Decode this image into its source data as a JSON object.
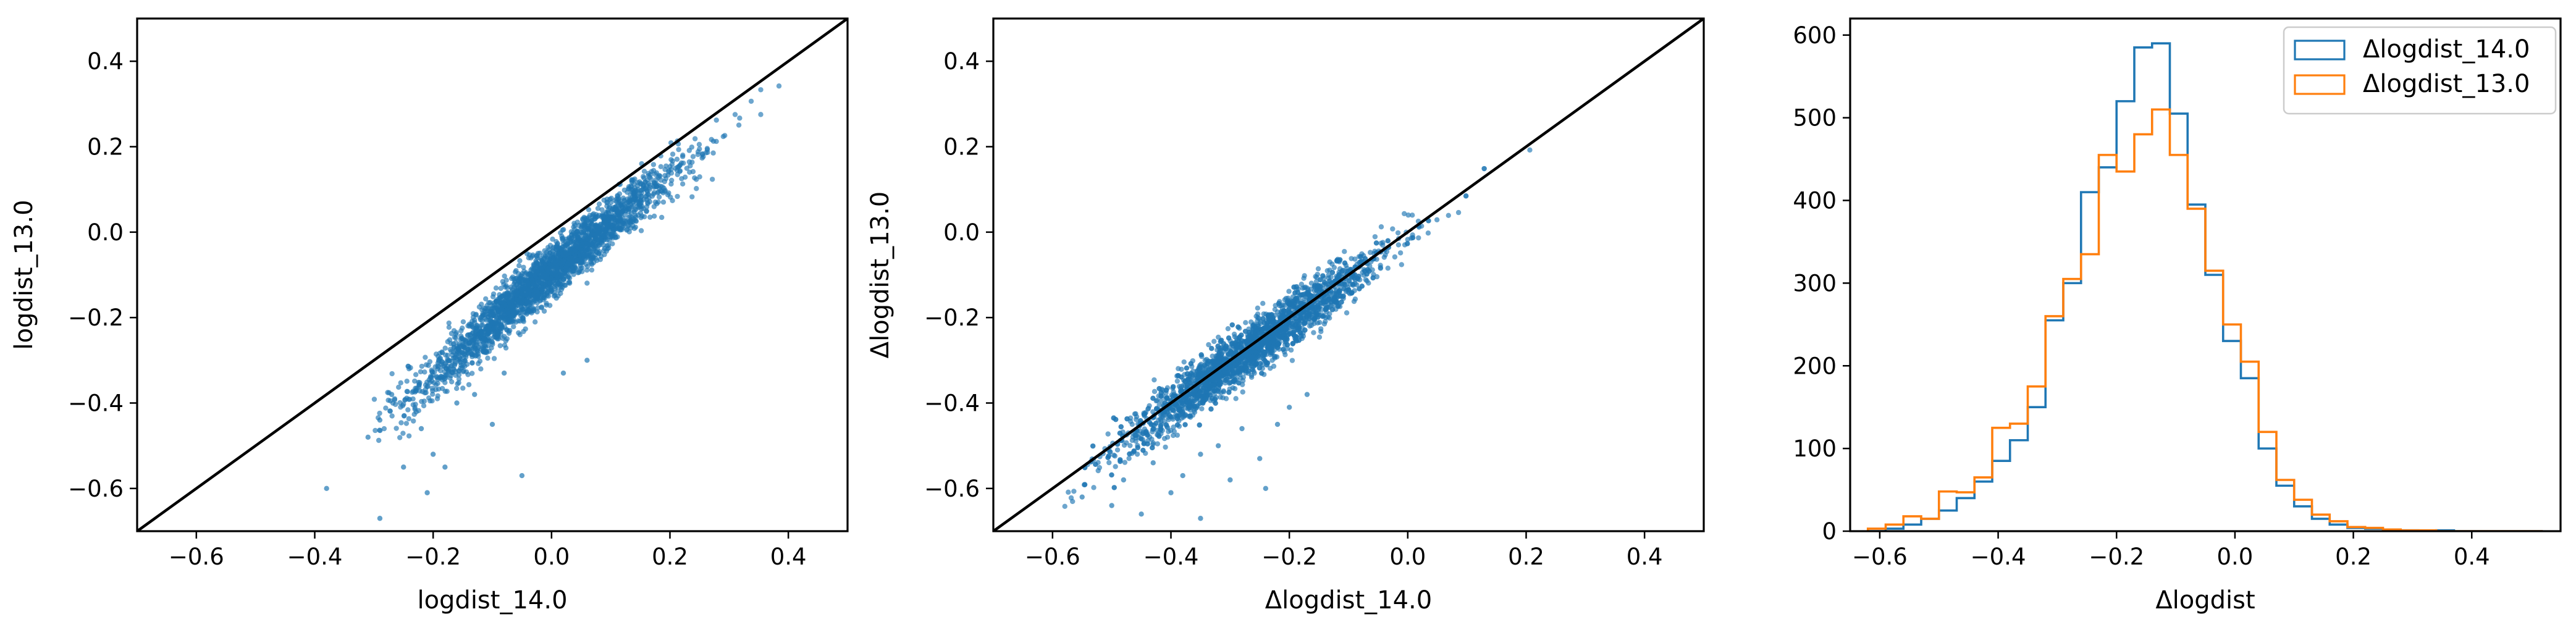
{
  "chart_data": [
    {
      "type": "scatter",
      "xlabel": "logdist_14.0",
      "ylabel": "logdist_13.0",
      "xlim": [
        -0.7,
        0.5
      ],
      "ylim": [
        -0.7,
        0.5
      ],
      "xticks": [
        "−0.6",
        "−0.4",
        "−0.2",
        "0.0",
        "0.2",
        "0.4"
      ],
      "xtick_values": [
        -0.6,
        -0.4,
        -0.2,
        0.0,
        0.2,
        0.4
      ],
      "yticks": [
        "−0.6",
        "−0.4",
        "−0.2",
        "0.0",
        "0.2",
        "0.4"
      ],
      "ytick_values": [
        -0.6,
        -0.4,
        -0.2,
        0.0,
        0.2,
        0.4
      ],
      "color": "#1f77b4",
      "reference_line": {
        "x": [
          -0.7,
          0.5
        ],
        "y": [
          -0.7,
          0.5
        ],
        "color": "#000000"
      },
      "cloud": {
        "x_range": [
          -0.3,
          0.44
        ],
        "y_at_x": [
          [
            -0.3,
            -0.44
          ],
          [
            -0.2,
            -0.33
          ],
          [
            -0.1,
            -0.2
          ],
          [
            0.0,
            -0.08
          ],
          [
            0.1,
            0.03
          ],
          [
            0.2,
            0.14
          ],
          [
            0.3,
            0.25
          ],
          [
            0.4,
            0.36
          ]
        ],
        "spread": 0.03
      },
      "points": [
        {
          "x": -0.38,
          "y": -0.6
        },
        {
          "x": -0.31,
          "y": -0.48
        },
        {
          "x": -0.29,
          "y": -0.44
        },
        {
          "x": -0.27,
          "y": -0.38
        },
        {
          "x": -0.25,
          "y": -0.55
        },
        {
          "x": -0.22,
          "y": -0.46
        },
        {
          "x": -0.2,
          "y": -0.52
        },
        {
          "x": -0.18,
          "y": -0.55
        },
        {
          "x": -0.16,
          "y": -0.4
        },
        {
          "x": -0.13,
          "y": -0.38
        },
        {
          "x": -0.1,
          "y": -0.45
        },
        {
          "x": -0.05,
          "y": -0.57
        },
        {
          "x": -0.08,
          "y": -0.33
        },
        {
          "x": -0.29,
          "y": -0.67
        },
        {
          "x": -0.21,
          "y": -0.61
        },
        {
          "x": 0.02,
          "y": -0.33
        },
        {
          "x": 0.06,
          "y": -0.3
        }
      ]
    },
    {
      "type": "scatter",
      "xlabel": "Δlogdist_14.0",
      "ylabel": "Δlogdist_13.0",
      "xlim": [
        -0.7,
        0.5
      ],
      "ylim": [
        -0.7,
        0.5
      ],
      "xticks": [
        "−0.6",
        "−0.4",
        "−0.2",
        "0.0",
        "0.2",
        "0.4"
      ],
      "xtick_values": [
        -0.6,
        -0.4,
        -0.2,
        0.0,
        0.2,
        0.4
      ],
      "yticks": [
        "−0.6",
        "−0.4",
        "−0.2",
        "0.0",
        "0.2",
        "0.4"
      ],
      "ytick_values": [
        -0.6,
        -0.4,
        -0.2,
        0.0,
        0.2,
        0.4
      ],
      "color": "#1f77b4",
      "reference_line": {
        "x": [
          -0.7,
          0.5
        ],
        "y": [
          -0.7,
          0.5
        ],
        "color": "#000000"
      },
      "cloud": {
        "x_range": [
          -0.58,
          0.21
        ],
        "y_at_x": [
          [
            -0.58,
            -0.6
          ],
          [
            -0.5,
            -0.5
          ],
          [
            -0.4,
            -0.4
          ],
          [
            -0.3,
            -0.3
          ],
          [
            -0.2,
            -0.2
          ],
          [
            -0.1,
            -0.1
          ],
          [
            0.0,
            0.0
          ],
          [
            0.1,
            0.12
          ],
          [
            0.2,
            0.22
          ]
        ],
        "spread": 0.03
      },
      "points": [
        {
          "x": -0.55,
          "y": -0.62
        },
        {
          "x": -0.5,
          "y": -0.64
        },
        {
          "x": -0.48,
          "y": -0.58
        },
        {
          "x": -0.45,
          "y": -0.66
        },
        {
          "x": -0.43,
          "y": -0.54
        },
        {
          "x": -0.4,
          "y": -0.61
        },
        {
          "x": -0.38,
          "y": -0.57
        },
        {
          "x": -0.35,
          "y": -0.52
        },
        {
          "x": -0.32,
          "y": -0.5
        },
        {
          "x": -0.3,
          "y": -0.58
        },
        {
          "x": -0.28,
          "y": -0.46
        },
        {
          "x": -0.25,
          "y": -0.53
        },
        {
          "x": -0.22,
          "y": -0.45
        },
        {
          "x": -0.2,
          "y": -0.41
        },
        {
          "x": -0.17,
          "y": -0.38
        },
        {
          "x": -0.35,
          "y": -0.67
        },
        {
          "x": -0.24,
          "y": -0.6
        }
      ]
    },
    {
      "type": "histogram",
      "xlabel": "Δlogdist",
      "ylabel": "",
      "xlim": [
        -0.65,
        0.55
      ],
      "ylim": [
        0,
        620
      ],
      "xticks": [
        "−0.6",
        "−0.4",
        "−0.2",
        "0.0",
        "0.2",
        "0.4"
      ],
      "xtick_values": [
        -0.6,
        -0.4,
        -0.2,
        0.0,
        0.2,
        0.4
      ],
      "yticks": [
        "0",
        "100",
        "200",
        "300",
        "400",
        "500",
        "600"
      ],
      "ytick_values": [
        0,
        100,
        200,
        300,
        400,
        500,
        600
      ],
      "legend_position": "top-right",
      "bin_edges": [
        -0.62,
        -0.59,
        -0.56,
        -0.53,
        -0.5,
        -0.47,
        -0.44,
        -0.41,
        -0.38,
        -0.35,
        -0.32,
        -0.29,
        -0.26,
        -0.23,
        -0.2,
        -0.17,
        -0.14,
        -0.11,
        -0.08,
        -0.05,
        -0.02,
        0.01,
        0.04,
        0.07,
        0.1,
        0.13,
        0.16,
        0.19,
        0.22,
        0.25,
        0.28,
        0.31,
        0.34,
        0.37,
        0.4,
        0.43,
        0.46,
        0.49,
        0.52
      ],
      "series": [
        {
          "name": "Δlogdist_14.0",
          "color": "#1f77b4",
          "values": [
            0,
            3,
            8,
            15,
            25,
            40,
            60,
            85,
            110,
            150,
            255,
            300,
            410,
            440,
            520,
            585,
            590,
            505,
            395,
            310,
            230,
            185,
            100,
            55,
            30,
            15,
            8,
            4,
            3,
            1,
            1,
            0,
            1,
            0,
            0,
            0,
            0,
            0
          ]
        },
        {
          "name": "Δlogdist_13.0",
          "color": "#ff7f0e",
          "values": [
            3,
            8,
            18,
            15,
            48,
            47,
            65,
            125,
            130,
            175,
            260,
            305,
            335,
            455,
            435,
            480,
            510,
            455,
            390,
            315,
            250,
            205,
            120,
            62,
            38,
            20,
            12,
            5,
            4,
            2,
            1,
            1,
            0,
            0,
            0,
            0,
            0,
            0
          ]
        }
      ]
    }
  ]
}
